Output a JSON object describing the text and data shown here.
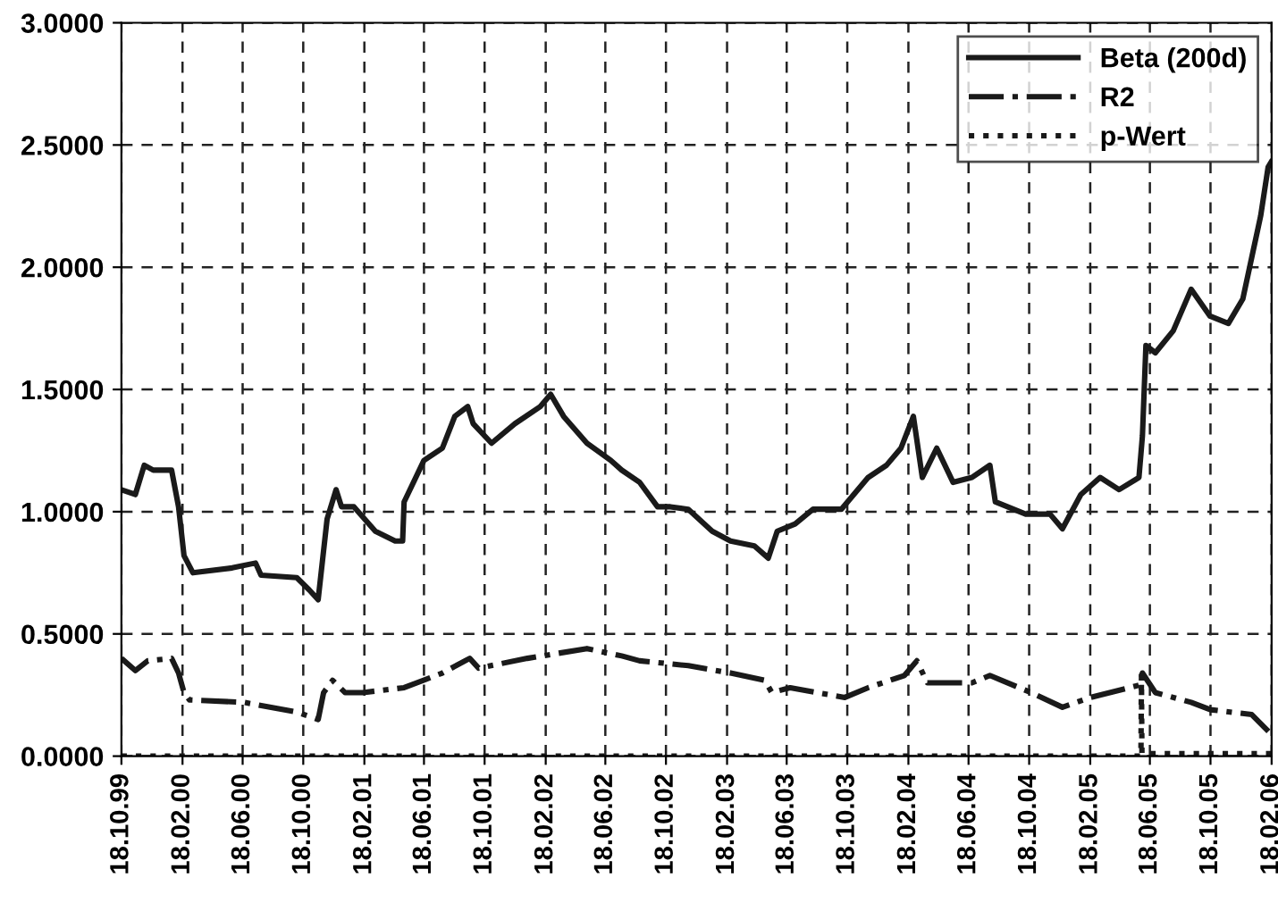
{
  "chart_data": {
    "type": "line",
    "grid": true,
    "legend": "top right",
    "marker": "none",
    "ylim": [
      0,
      3
    ],
    "yticks": [
      {
        "value": 0,
        "label": "0.0000"
      },
      {
        "value": 0.5,
        "label": "0.5000"
      },
      {
        "value": 1,
        "label": "1.0000"
      },
      {
        "value": 1.5,
        "label": "1.5000"
      },
      {
        "value": 2,
        "label": "2.0000"
      },
      {
        "value": 2.5,
        "label": "2.5000"
      },
      {
        "value": 3,
        "label": "3.0000"
      }
    ],
    "xlim": [
      "1999-10-18",
      "2006-02-18"
    ],
    "xticks": [
      {
        "value": "1999-10-18",
        "label": "18.10.99"
      },
      {
        "value": "2000-02-18",
        "label": "18.02.00"
      },
      {
        "value": "2000-06-18",
        "label": "18.06.00"
      },
      {
        "value": "2000-10-18",
        "label": "18.10.00"
      },
      {
        "value": "2001-02-18",
        "label": "18.02.01"
      },
      {
        "value": "2001-06-18",
        "label": "18.06.01"
      },
      {
        "value": "2001-10-18",
        "label": "18.10.01"
      },
      {
        "value": "2002-02-18",
        "label": "18.02.02"
      },
      {
        "value": "2002-06-18",
        "label": "18.06.02"
      },
      {
        "value": "2002-10-18",
        "label": "18.10.02"
      },
      {
        "value": "2003-02-18",
        "label": "18.02.03"
      },
      {
        "value": "2003-06-18",
        "label": "18.06.03"
      },
      {
        "value": "2003-10-18",
        "label": "18.10.03"
      },
      {
        "value": "2004-02-18",
        "label": "18.02.04"
      },
      {
        "value": "2004-06-18",
        "label": "18.06.04"
      },
      {
        "value": "2004-10-18",
        "label": "18.10.04"
      },
      {
        "value": "2005-02-18",
        "label": "18.02.05"
      },
      {
        "value": "2005-06-18",
        "label": "18.06.05"
      },
      {
        "value": "2005-10-18",
        "label": "18.10.05"
      },
      {
        "value": "2006-02-18",
        "label": "18.02.06"
      }
    ],
    "series": [
      {
        "name": "Beta (200d)",
        "color": "#1a1a1a",
        "line_style": "solid",
        "x": [
          "1999-10-18",
          "1999-11-15",
          "1999-12-03",
          "1999-12-21",
          "2000-01-27",
          "2000-02-10",
          "2000-02-21",
          "2000-03-10",
          "2000-05-28",
          "2000-07-14",
          "2000-07-25",
          "2000-10-05",
          "2000-10-30",
          "2000-11-17",
          "2000-12-05",
          "2000-12-23",
          "2001-01-03",
          "2001-01-28",
          "2001-03-12",
          "2001-04-21",
          "2001-05-06",
          "2001-05-09",
          "2001-06-18",
          "2001-07-25",
          "2001-08-19",
          "2001-09-14",
          "2001-09-25",
          "2001-11-01",
          "2001-12-18",
          "2002-02-07",
          "2002-02-28",
          "2002-03-26",
          "2002-05-12",
          "2002-06-29",
          "2002-07-21",
          "2002-08-26",
          "2002-10-01",
          "2002-10-27",
          "2002-12-02",
          "2003-01-19",
          "2003-02-25",
          "2003-04-14",
          "2003-05-12",
          "2003-05-30",
          "2003-07-05",
          "2003-08-10",
          "2003-10-06",
          "2003-11-29",
          "2004-01-05",
          "2004-02-03",
          "2004-02-28",
          "2004-03-17",
          "2004-04-15",
          "2004-05-18",
          "2004-06-25",
          "2004-07-31",
          "2004-08-11",
          "2004-10-11",
          "2004-11-29",
          "2004-12-24",
          "2005-01-30",
          "2005-03-10",
          "2005-04-17",
          "2005-05-27",
          "2005-06-03",
          "2005-06-10",
          "2005-06-29",
          "2005-08-04",
          "2005-09-09",
          "2005-10-17",
          "2005-11-23",
          "2005-12-22",
          "2006-01-09",
          "2006-01-27",
          "2006-02-11",
          "2006-02-17"
        ],
        "values": [
          1.09,
          1.07,
          1.19,
          1.17,
          1.17,
          1.02,
          0.82,
          0.75,
          0.77,
          0.79,
          0.74,
          0.73,
          0.68,
          0.64,
          0.97,
          1.09,
          1.02,
          1.02,
          0.92,
          0.88,
          0.88,
          1.04,
          1.21,
          1.26,
          1.39,
          1.43,
          1.36,
          1.28,
          1.36,
          1.43,
          1.48,
          1.39,
          1.28,
          1.21,
          1.17,
          1.12,
          1.02,
          1.02,
          1.01,
          0.92,
          0.88,
          0.86,
          0.81,
          0.92,
          0.95,
          1.01,
          1.01,
          1.14,
          1.19,
          1.26,
          1.39,
          1.14,
          1.26,
          1.12,
          1.14,
          1.19,
          1.04,
          0.99,
          0.99,
          0.93,
          1.07,
          1.14,
          1.09,
          1.14,
          1.31,
          1.68,
          1.65,
          1.74,
          1.91,
          1.8,
          1.77,
          1.87,
          2.04,
          2.21,
          2.41,
          2.43
        ]
      },
      {
        "name": "R2",
        "color": "#1a1a1a",
        "line_style": "dashdot",
        "x": [
          "1999-10-18",
          "1999-11-15",
          "1999-12-10",
          "2000-01-27",
          "2000-02-10",
          "2000-02-21",
          "2000-03-03",
          "2000-06-21",
          "2000-10-05",
          "2000-11-17",
          "2000-11-28",
          "2000-12-16",
          "2001-01-10",
          "2001-02-15",
          "2001-05-09",
          "2001-07-25",
          "2001-09-18",
          "2001-10-06",
          "2002-01-12",
          "2002-05-12",
          "2002-07-21",
          "2002-08-26",
          "2002-12-02",
          "2003-02-25",
          "2003-05-05",
          "2003-05-19",
          "2003-06-25",
          "2003-10-13",
          "2003-11-29",
          "2004-02-10",
          "2004-03-06",
          "2004-03-27",
          "2004-06-25",
          "2004-07-31",
          "2004-10-22",
          "2004-12-24",
          "2005-02-18",
          "2005-05-27",
          "2005-06-03",
          "2005-06-29",
          "2005-09-09",
          "2005-10-18",
          "2006-01-09",
          "2006-02-17"
        ],
        "values": [
          0.4,
          0.35,
          0.39,
          0.4,
          0.34,
          0.26,
          0.23,
          0.22,
          0.18,
          0.15,
          0.26,
          0.31,
          0.26,
          0.26,
          0.28,
          0.34,
          0.4,
          0.36,
          0.4,
          0.44,
          0.41,
          0.39,
          0.37,
          0.34,
          0.31,
          0.26,
          0.28,
          0.24,
          0.28,
          0.33,
          0.39,
          0.3,
          0.3,
          0.33,
          0.26,
          0.2,
          0.24,
          0.29,
          0.34,
          0.26,
          0.22,
          0.19,
          0.17,
          0.09
        ]
      },
      {
        "name": "p-Wert",
        "color": "#1a1a1a",
        "line_style": "dotted",
        "x": [
          "1999-10-18",
          "2005-05-31",
          "2005-06-01",
          "2005-06-02",
          "2006-02-17"
        ],
        "values": [
          0,
          0,
          0.33,
          0.01,
          0.01
        ]
      }
    ]
  }
}
